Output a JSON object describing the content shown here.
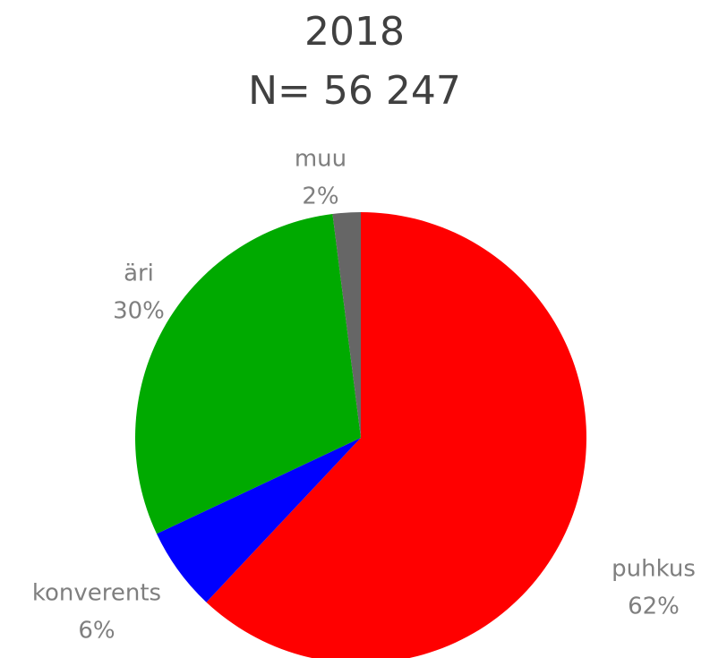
{
  "chart_data": {
    "type": "pie",
    "title": "2018",
    "subtitle": "N= 56 247",
    "categories": [
      "puhkus",
      "konverents",
      "äri",
      "muu"
    ],
    "values": [
      62,
      6,
      30,
      2
    ],
    "value_labels": [
      "62%",
      "6%",
      "30%",
      "2%"
    ],
    "colors": [
      "#ff0000",
      "#0000ff",
      "#00aa00",
      "#666666"
    ]
  }
}
